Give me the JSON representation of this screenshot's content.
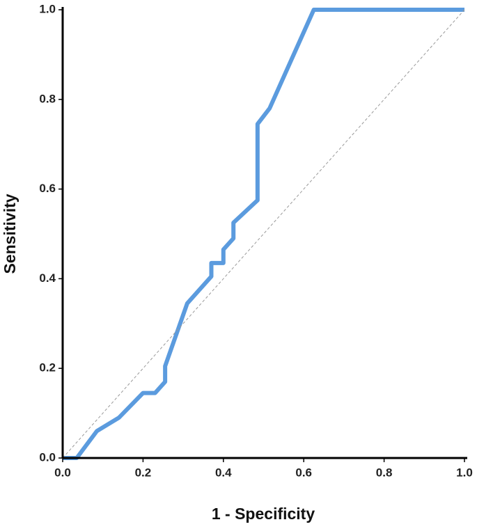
{
  "chart_data": {
    "type": "line",
    "x_label": "1 - Specificity",
    "y_label": "Sensitivity",
    "series": [
      {
        "color": "#5b9bde",
        "width": 6,
        "x": [
          0,
          0.035,
          0.085,
          0.14,
          0.2,
          0.23,
          0.255,
          0.255,
          0.31,
          0.37,
          0.37,
          0.4,
          0.4,
          0.425,
          0.425,
          0.485,
          0.485,
          0.515,
          0.625,
          1.0
        ],
        "values": [
          0,
          0,
          0.06,
          0.09,
          0.145,
          0.145,
          0.17,
          0.205,
          0.345,
          0.405,
          0.435,
          0.435,
          0.465,
          0.49,
          0.525,
          0.575,
          0.745,
          0.78,
          1.0,
          1.0
        ]
      },
      {
        "color": "#999999",
        "width": 1,
        "dashed": true,
        "x": [
          0,
          1
        ],
        "values": [
          0,
          1
        ]
      }
    ],
    "xlim": [
      0,
      1
    ],
    "ylim": [
      0,
      1
    ],
    "xticks": [
      {
        "value": 0,
        "label": "0.0"
      },
      0.2,
      0.4,
      0.6,
      0.8,
      {
        "value": 1,
        "label": "1.0"
      }
    ],
    "yticks": [
      {
        "value": 0,
        "label": "0.0"
      },
      0.2,
      0.4,
      0.6,
      0.8,
      {
        "value": 1,
        "label": "1.0"
      }
    ]
  }
}
